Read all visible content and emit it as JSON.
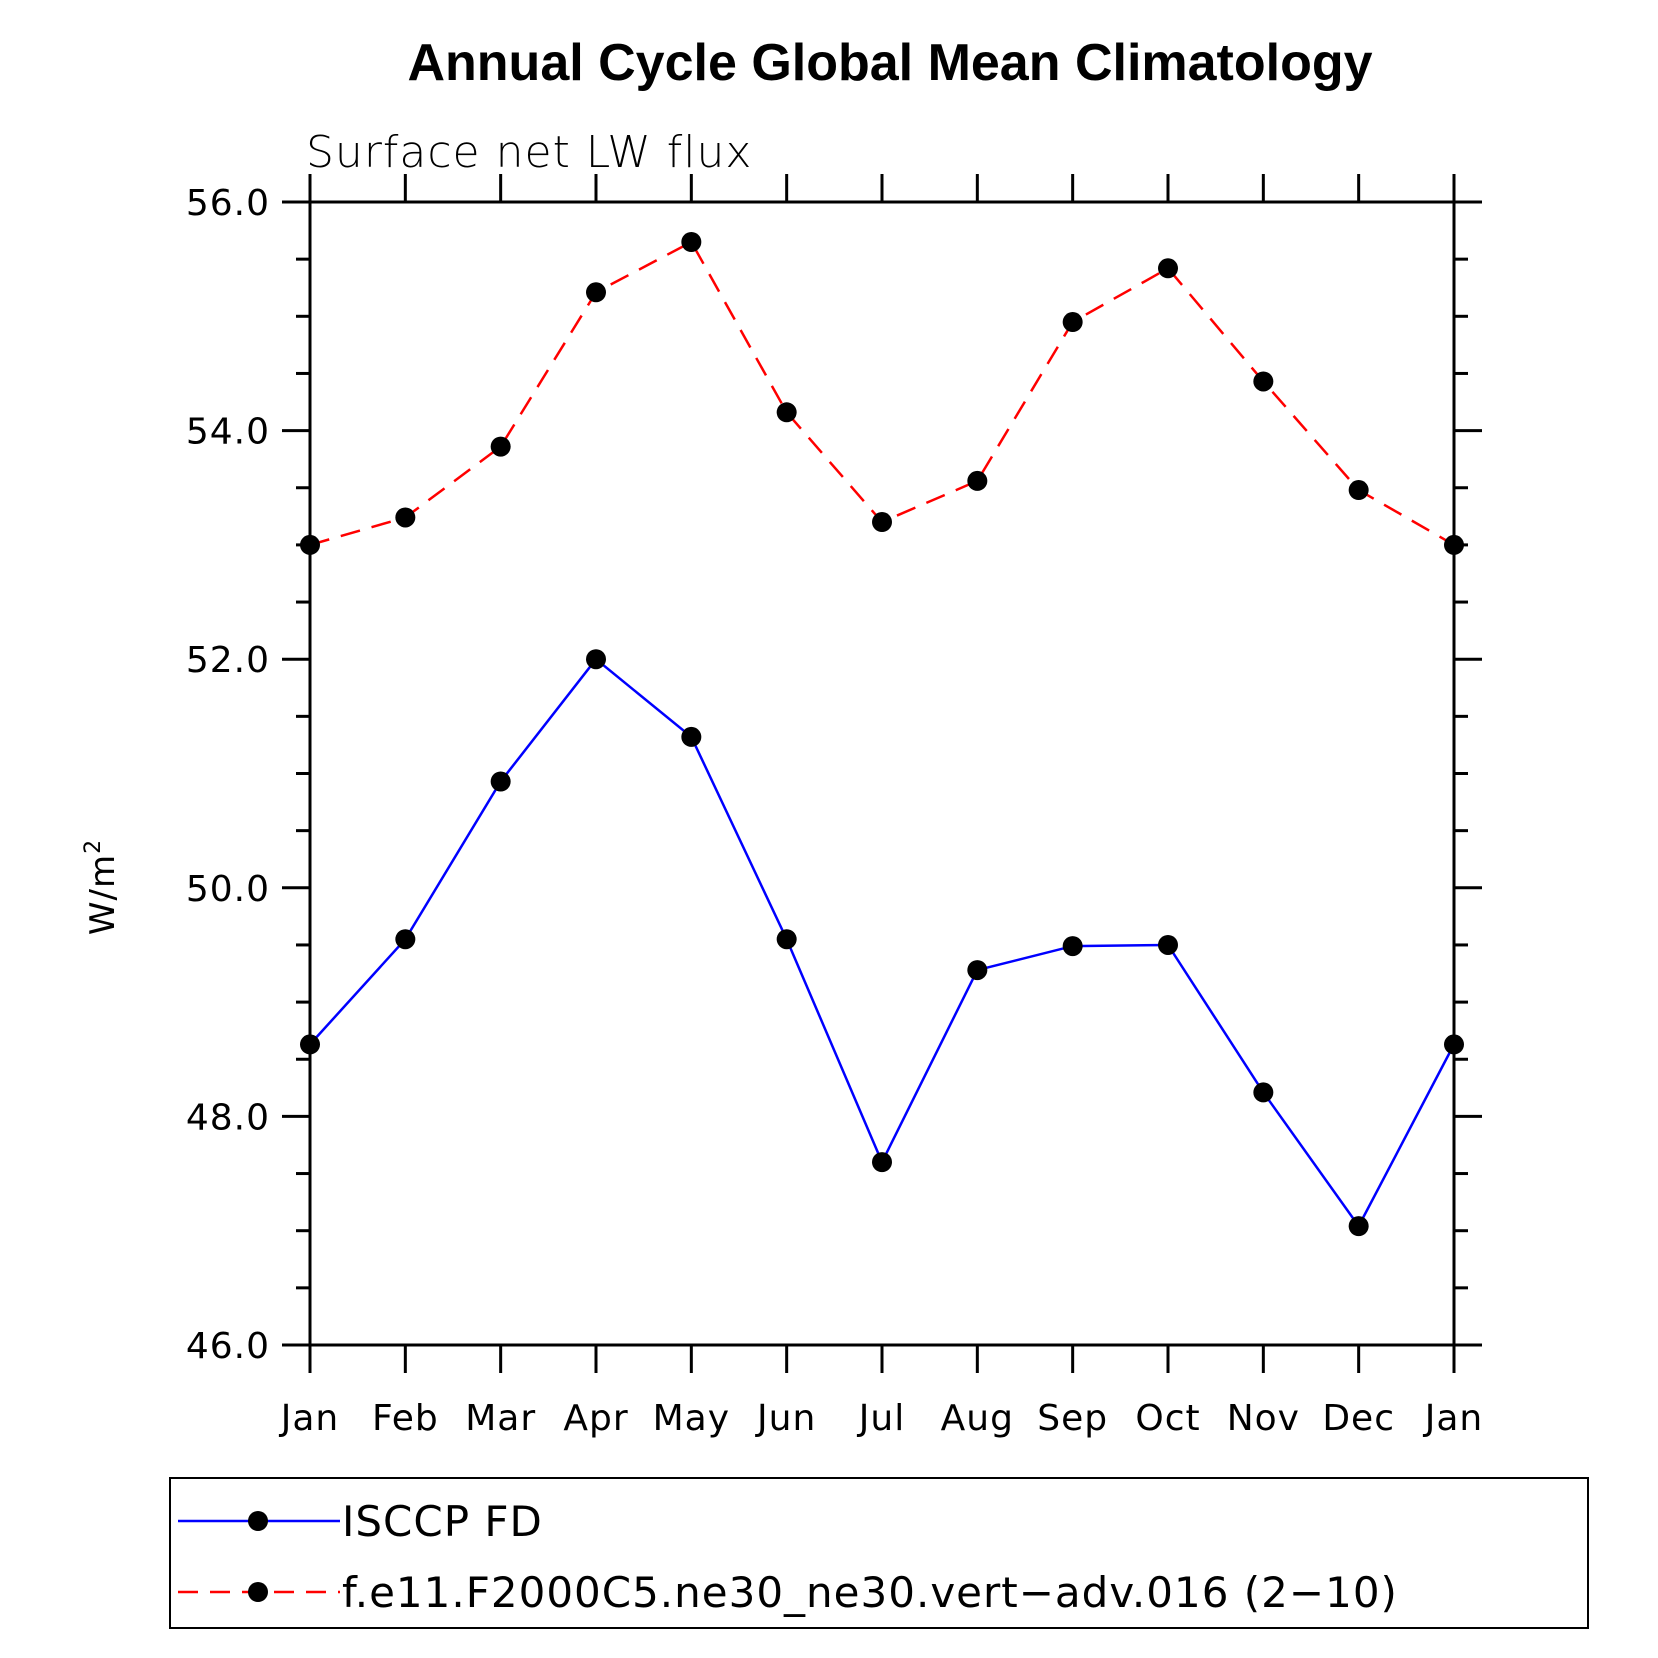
{
  "chart_data": {
    "type": "line",
    "title": "Annual Cycle Global Mean Climatology",
    "subtitle": "Surface net LW flux",
    "ylabel_base": "W/m",
    "ylabel_sup": "2",
    "xlabel": "",
    "categories": [
      "Jan",
      "Feb",
      "Mar",
      "Apr",
      "May",
      "Jun",
      "Jul",
      "Aug",
      "Sep",
      "Oct",
      "Nov",
      "Dec",
      "Jan"
    ],
    "ylim": [
      46.0,
      56.0
    ],
    "yticks": [
      "46.0",
      "48.0",
      "50.0",
      "52.0",
      "54.0",
      "56.0"
    ],
    "series": [
      {
        "name": "ISCCP FD",
        "color": "#0000ff",
        "style": "solid",
        "values": [
          48.63,
          49.55,
          50.93,
          52.0,
          51.32,
          49.55,
          47.6,
          49.28,
          49.49,
          49.5,
          48.21,
          47.04,
          48.63
        ]
      },
      {
        "name": "f.e11.F2000C5.ne30_ne30.vert−adv.016 (2−10)",
        "color": "#ff0000",
        "style": "dashed",
        "values": [
          53.0,
          53.24,
          53.86,
          55.21,
          55.65,
          54.16,
          53.2,
          53.56,
          54.95,
          55.42,
          54.43,
          53.48,
          53.0
        ]
      }
    ],
    "marker_color": "#000000",
    "legend_position": "bottom"
  }
}
